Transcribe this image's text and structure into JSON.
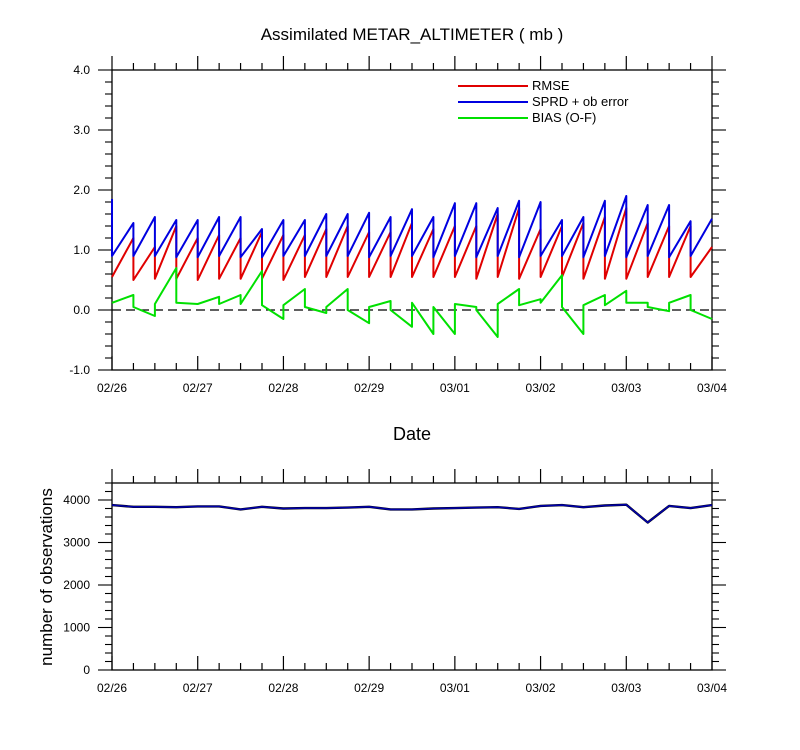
{
  "chart_data": [
    {
      "type": "line",
      "title": "Assimilated METAR_ALTIMETER ( mb )",
      "xlabel": "Date",
      "ylabel": "",
      "ylim": [
        -1.0,
        4.0
      ],
      "yticks": [
        "4.0",
        "3.0",
        "2.0",
        "1.0",
        "0.0",
        "-1.0"
      ],
      "xticks": [
        "02/26",
        "02/27",
        "02/28",
        "02/29",
        "03/01",
        "03/02",
        "03/03",
        "03/04"
      ],
      "zero_line": true,
      "legend_position": "top-right",
      "colors": {
        "RMSE": "#e00000",
        "SPRD": "#0000e0",
        "BIAS": "#00e000"
      },
      "series": [
        {
          "name": "RMSE",
          "values": [
            [
              0.0,
              0.55
            ],
            [
              0.25,
              1.2
            ],
            [
              0.25,
              0.5
            ],
            [
              0.5,
              1.05
            ],
            [
              0.5,
              0.52
            ],
            [
              0.75,
              1.4
            ],
            [
              0.75,
              0.52
            ],
            [
              1.0,
              1.2
            ],
            [
              1.0,
              0.5
            ],
            [
              1.25,
              1.25
            ],
            [
              1.25,
              0.52
            ],
            [
              1.5,
              1.2
            ],
            [
              1.5,
              0.52
            ],
            [
              1.75,
              1.3
            ],
            [
              1.75,
              0.52
            ],
            [
              2.0,
              1.25
            ],
            [
              2.0,
              0.5
            ],
            [
              2.25,
              1.25
            ],
            [
              2.25,
              0.55
            ],
            [
              2.5,
              1.35
            ],
            [
              2.5,
              0.55
            ],
            [
              2.75,
              1.4
            ],
            [
              2.75,
              0.55
            ],
            [
              3.0,
              1.3
            ],
            [
              3.0,
              0.55
            ],
            [
              3.25,
              1.3
            ],
            [
              3.25,
              0.55
            ],
            [
              3.5,
              1.45
            ],
            [
              3.5,
              0.55
            ],
            [
              3.75,
              1.35
            ],
            [
              3.75,
              0.55
            ],
            [
              4.0,
              1.4
            ],
            [
              4.0,
              0.55
            ],
            [
              4.25,
              1.4
            ],
            [
              4.25,
              0.52
            ],
            [
              4.5,
              1.6
            ],
            [
              4.5,
              0.55
            ],
            [
              4.75,
              1.7
            ],
            [
              4.75,
              0.52
            ],
            [
              5.0,
              1.35
            ],
            [
              5.0,
              0.55
            ],
            [
              5.25,
              1.4
            ],
            [
              5.25,
              0.55
            ],
            [
              5.5,
              1.45
            ],
            [
              5.5,
              0.52
            ],
            [
              5.75,
              1.55
            ],
            [
              5.75,
              0.52
            ],
            [
              6.0,
              1.7
            ],
            [
              6.0,
              0.52
            ],
            [
              6.25,
              1.45
            ],
            [
              6.25,
              0.55
            ],
            [
              6.5,
              1.4
            ],
            [
              6.5,
              0.55
            ],
            [
              6.75,
              1.4
            ],
            [
              6.75,
              0.55
            ],
            [
              7.0,
              1.05
            ]
          ]
        },
        {
          "name": "SPRD + ob error",
          "values": [
            [
              0.0,
              1.85
            ],
            [
              0.0,
              0.9
            ],
            [
              0.25,
              1.45
            ],
            [
              0.25,
              0.9
            ],
            [
              0.5,
              1.55
            ],
            [
              0.5,
              0.9
            ],
            [
              0.75,
              1.5
            ],
            [
              0.75,
              0.88
            ],
            [
              1.0,
              1.5
            ],
            [
              1.0,
              0.88
            ],
            [
              1.25,
              1.55
            ],
            [
              1.25,
              0.9
            ],
            [
              1.5,
              1.55
            ],
            [
              1.5,
              0.88
            ],
            [
              1.75,
              1.35
            ],
            [
              1.75,
              0.88
            ],
            [
              2.0,
              1.5
            ],
            [
              2.0,
              0.9
            ],
            [
              2.25,
              1.5
            ],
            [
              2.25,
              0.9
            ],
            [
              2.5,
              1.6
            ],
            [
              2.5,
              0.9
            ],
            [
              2.75,
              1.6
            ],
            [
              2.75,
              0.9
            ],
            [
              3.0,
              1.62
            ],
            [
              3.0,
              0.88
            ],
            [
              3.25,
              1.55
            ],
            [
              3.25,
              0.9
            ],
            [
              3.5,
              1.68
            ],
            [
              3.5,
              0.9
            ],
            [
              3.75,
              1.55
            ],
            [
              3.75,
              0.88
            ],
            [
              4.0,
              1.78
            ],
            [
              4.0,
              0.9
            ],
            [
              4.25,
              1.78
            ],
            [
              4.25,
              0.88
            ],
            [
              4.5,
              1.7
            ],
            [
              4.5,
              0.9
            ],
            [
              4.75,
              1.82
            ],
            [
              4.75,
              0.88
            ],
            [
              5.0,
              1.8
            ],
            [
              5.0,
              0.9
            ],
            [
              5.25,
              1.5
            ],
            [
              5.25,
              0.9
            ],
            [
              5.5,
              1.55
            ],
            [
              5.5,
              0.88
            ],
            [
              5.75,
              1.82
            ],
            [
              5.75,
              0.9
            ],
            [
              6.0,
              1.9
            ],
            [
              6.0,
              0.88
            ],
            [
              6.25,
              1.75
            ],
            [
              6.25,
              0.9
            ],
            [
              6.5,
              1.75
            ],
            [
              6.5,
              0.88
            ],
            [
              6.75,
              1.48
            ],
            [
              6.75,
              0.9
            ],
            [
              7.0,
              1.52
            ]
          ]
        },
        {
          "name": "BIAS (O-F)",
          "values": [
            [
              0.0,
              0.12
            ],
            [
              0.25,
              0.25
            ],
            [
              0.25,
              0.05
            ],
            [
              0.5,
              -0.1
            ],
            [
              0.5,
              0.1
            ],
            [
              0.75,
              0.7
            ],
            [
              0.75,
              0.12
            ],
            [
              1.0,
              0.1
            ],
            [
              1.25,
              0.22
            ],
            [
              1.25,
              0.1
            ],
            [
              1.5,
              0.25
            ],
            [
              1.5,
              0.1
            ],
            [
              1.75,
              0.65
            ],
            [
              1.75,
              0.08
            ],
            [
              2.0,
              -0.15
            ],
            [
              2.0,
              0.08
            ],
            [
              2.25,
              0.35
            ],
            [
              2.25,
              0.05
            ],
            [
              2.5,
              -0.05
            ],
            [
              2.5,
              0.05
            ],
            [
              2.75,
              0.35
            ],
            [
              2.75,
              0.0
            ],
            [
              3.0,
              -0.22
            ],
            [
              3.0,
              0.05
            ],
            [
              3.25,
              0.15
            ],
            [
              3.25,
              0.0
            ],
            [
              3.5,
              -0.28
            ],
            [
              3.5,
              0.12
            ],
            [
              3.75,
              -0.4
            ],
            [
              3.75,
              0.05
            ],
            [
              4.0,
              -0.4
            ],
            [
              4.0,
              0.1
            ],
            [
              4.25,
              0.05
            ],
            [
              4.25,
              0.0
            ],
            [
              4.5,
              -0.45
            ],
            [
              4.5,
              0.1
            ],
            [
              4.75,
              0.35
            ],
            [
              4.75,
              0.08
            ],
            [
              5.0,
              0.18
            ],
            [
              5.0,
              0.12
            ],
            [
              5.25,
              0.58
            ],
            [
              5.25,
              0.05
            ],
            [
              5.5,
              -0.4
            ],
            [
              5.5,
              0.08
            ],
            [
              5.75,
              0.25
            ],
            [
              5.75,
              0.08
            ],
            [
              6.0,
              0.32
            ],
            [
              6.0,
              0.12
            ],
            [
              6.25,
              0.12
            ],
            [
              6.25,
              0.05
            ],
            [
              6.5,
              -0.02
            ],
            [
              6.5,
              0.12
            ],
            [
              6.75,
              0.25
            ],
            [
              6.75,
              0.0
            ],
            [
              7.0,
              -0.15
            ]
          ]
        }
      ]
    },
    {
      "type": "line",
      "title": "",
      "xlabel": "",
      "ylabel": "number of observations",
      "ylim": [
        0,
        4400
      ],
      "yticks": [
        "4000",
        "3000",
        "2000",
        "1000",
        "0"
      ],
      "xticks": [
        "02/26",
        "02/27",
        "02/28",
        "02/29",
        "03/01",
        "03/02",
        "03/03",
        "03/04"
      ],
      "colors": {
        "possible": "#0000aa",
        "used": "#000000"
      },
      "series": [
        {
          "values": [
            [
              0.0,
              3880
            ],
            [
              0.25,
              3840
            ],
            [
              0.5,
              3840
            ],
            [
              0.75,
              3830
            ],
            [
              1.0,
              3850
            ],
            [
              1.25,
              3850
            ],
            [
              1.5,
              3780
            ],
            [
              1.75,
              3840
            ],
            [
              2.0,
              3800
            ],
            [
              2.25,
              3810
            ],
            [
              2.5,
              3810
            ],
            [
              2.75,
              3820
            ],
            [
              3.0,
              3840
            ],
            [
              3.25,
              3780
            ],
            [
              3.5,
              3780
            ],
            [
              3.75,
              3800
            ],
            [
              4.0,
              3810
            ],
            [
              4.25,
              3820
            ],
            [
              4.5,
              3830
            ],
            [
              4.75,
              3790
            ],
            [
              5.0,
              3860
            ],
            [
              5.25,
              3880
            ],
            [
              5.5,
              3830
            ],
            [
              5.75,
              3870
            ],
            [
              6.0,
              3890
            ],
            [
              6.25,
              3470
            ],
            [
              6.5,
              3860
            ],
            [
              6.75,
              3810
            ],
            [
              7.0,
              3880
            ]
          ]
        }
      ]
    }
  ]
}
